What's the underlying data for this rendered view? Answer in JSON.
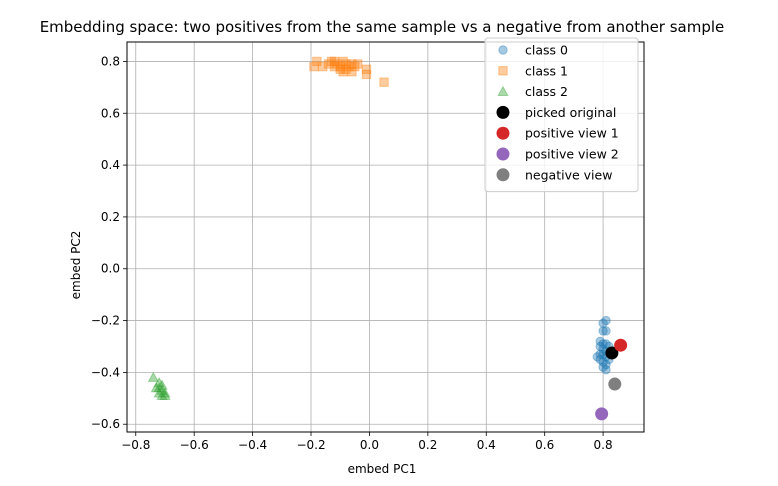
{
  "chart_data": {
    "type": "scatter",
    "title": "Embedding space: two positives from the same sample vs a negative from another sample",
    "xlabel": "embed PC1",
    "ylabel": "embed PC2",
    "xlim": [
      -0.83,
      0.94
    ],
    "ylim": [
      -0.63,
      0.875
    ],
    "xticks": [
      -0.8,
      -0.6,
      -0.4,
      -0.2,
      0.0,
      0.2,
      0.4,
      0.6,
      0.8
    ],
    "xtick_labels": [
      "−0.8",
      "−0.6",
      "−0.4",
      "−0.2",
      "0.0",
      "0.2",
      "0.4",
      "0.6",
      "0.8"
    ],
    "yticks": [
      -0.6,
      -0.4,
      -0.2,
      0.0,
      0.2,
      0.4,
      0.6,
      0.8
    ],
    "ytick_labels": [
      "−0.6",
      "−0.4",
      "−0.2",
      "0.0",
      "0.2",
      "0.4",
      "0.6",
      "0.8"
    ],
    "grid": true,
    "legend_position": "top-right",
    "series": [
      {
        "name": "class 0",
        "marker": "circle",
        "color": "#1f77b4",
        "alpha": 0.4,
        "points": [
          [
            0.81,
            -0.2
          ],
          [
            0.8,
            -0.21
          ],
          [
            0.81,
            -0.24
          ],
          [
            0.8,
            -0.24
          ],
          [
            0.79,
            -0.28
          ],
          [
            0.8,
            -0.29
          ],
          [
            0.81,
            -0.29
          ],
          [
            0.79,
            -0.3
          ],
          [
            0.82,
            -0.3
          ],
          [
            0.8,
            -0.31
          ],
          [
            0.81,
            -0.32
          ],
          [
            0.79,
            -0.33
          ],
          [
            0.8,
            -0.33
          ],
          [
            0.78,
            -0.34
          ],
          [
            0.81,
            -0.34
          ],
          [
            0.79,
            -0.35
          ],
          [
            0.82,
            -0.35
          ],
          [
            0.8,
            -0.36
          ],
          [
            0.81,
            -0.37
          ],
          [
            0.8,
            -0.38
          ],
          [
            0.81,
            -0.39
          ]
        ]
      },
      {
        "name": "class 1",
        "marker": "square",
        "color": "#ff7f0e",
        "alpha": 0.4,
        "points": [
          [
            -0.18,
            0.8
          ],
          [
            -0.19,
            0.78
          ],
          [
            -0.16,
            0.78
          ],
          [
            -0.14,
            0.79
          ],
          [
            -0.13,
            0.8
          ],
          [
            -0.12,
            0.8
          ],
          [
            -0.12,
            0.78
          ],
          [
            -0.11,
            0.79
          ],
          [
            -0.1,
            0.78
          ],
          [
            -0.1,
            0.77
          ],
          [
            -0.09,
            0.8
          ],
          [
            -0.09,
            0.76
          ],
          [
            -0.08,
            0.79
          ],
          [
            -0.08,
            0.77
          ],
          [
            -0.07,
            0.78
          ],
          [
            -0.06,
            0.79
          ],
          [
            -0.06,
            0.76
          ],
          [
            -0.05,
            0.78
          ],
          [
            -0.04,
            0.79
          ],
          [
            -0.01,
            0.77
          ],
          [
            -0.01,
            0.75
          ],
          [
            0.05,
            0.72
          ]
        ]
      },
      {
        "name": "class 2",
        "marker": "triangle",
        "color": "#2ca02c",
        "alpha": 0.4,
        "points": [
          [
            -0.74,
            -0.42
          ],
          [
            -0.72,
            -0.44
          ],
          [
            -0.71,
            -0.45
          ],
          [
            -0.73,
            -0.46
          ],
          [
            -0.72,
            -0.46
          ],
          [
            -0.71,
            -0.47
          ],
          [
            -0.72,
            -0.48
          ],
          [
            -0.7,
            -0.48
          ],
          [
            -0.71,
            -0.49
          ],
          [
            -0.7,
            -0.49
          ]
        ]
      },
      {
        "name": "picked original",
        "marker": "big-circle",
        "color": "#000000",
        "alpha": 1,
        "points": [
          [
            0.83,
            -0.325
          ]
        ]
      },
      {
        "name": "positive view 1",
        "marker": "big-circle",
        "color": "#d62728",
        "alpha": 1,
        "points": [
          [
            0.86,
            -0.295
          ]
        ]
      },
      {
        "name": "positive view 2",
        "marker": "big-circle",
        "color": "#9467bd",
        "alpha": 1,
        "points": [
          [
            0.795,
            -0.56
          ]
        ]
      },
      {
        "name": "negative view",
        "marker": "big-circle",
        "color": "#7f7f7f",
        "alpha": 1,
        "points": [
          [
            0.84,
            -0.445
          ]
        ]
      }
    ]
  }
}
